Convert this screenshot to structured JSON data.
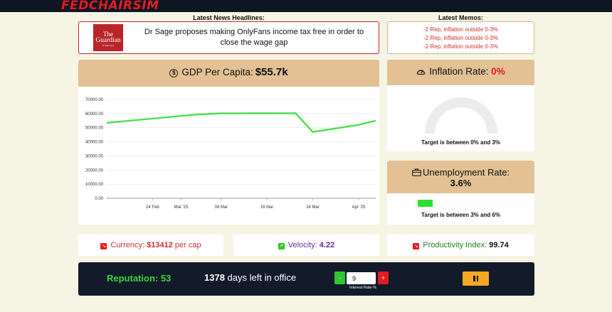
{
  "app": {
    "logo_text": "FEDCHAIRSIM"
  },
  "news": {
    "section_title": "Latest News Headlines:",
    "source_logo": {
      "line1": "The",
      "line2": "Guardian",
      "line3": "of democracy"
    },
    "headline": "Dr Sage proposes making OnlyFans income tax free in order to close the wage gap"
  },
  "memos": {
    "section_title": "Latest Memos:",
    "items": [
      "-2 Rep, inflation outside 0-3%",
      "-2 Rep, inflation outside 0-3%",
      "-2 Rep, inflation outside 0-3%"
    ]
  },
  "gdp": {
    "label": "GDP Per Capita:",
    "value": "$55.7k",
    "icon": "dollar-coin-icon"
  },
  "inflation": {
    "label": "Inflation Rate:",
    "value": "0%",
    "target": "Target is between 0% and 3%",
    "icon": "gauge-icon",
    "gauge_fraction": 0
  },
  "unemployment": {
    "label": "Unemployment Rate:",
    "value": "3.6%",
    "target": "Target is between 3% and 6%",
    "icon": "briefcase-icon",
    "bar_value": 3.6
  },
  "stats": {
    "currency": {
      "label": "Currency:",
      "value": "$13412",
      "suffix": "per cap",
      "icon": "red-badge-icon"
    },
    "velocity": {
      "label": "Velocity:",
      "value": "4.22",
      "icon": "green-badge-icon"
    },
    "productivity": {
      "label": "Productivity Index:",
      "value": "99.74",
      "icon": "red-badge-icon"
    }
  },
  "controls": {
    "reputation_label": "Reputation:",
    "reputation_value": "53",
    "days_value": "1378",
    "days_label": "days left in office",
    "minus_label": "-",
    "plus_label": "+",
    "interest_rate_value": "9",
    "interest_rate_label": "Interest Rate %",
    "pause_icon": "pause-icon"
  },
  "colors": {
    "accent_red": "#e21b22",
    "line_green": "#4be04b",
    "header_tan": "#e3c195",
    "dark_panel": "#131a29"
  },
  "chart_data": {
    "type": "line",
    "yticks": [
      "70000.00",
      "60000.00",
      "50000.00",
      "40000.00",
      "30000.00",
      "20000.00",
      "10000.00",
      "0.00"
    ],
    "xticks": [
      "24 Feb",
      "Mar '25",
      "08 Mar",
      "16 Mar",
      "24 Mar",
      "Apr '25"
    ],
    "ylim": [
      0,
      70000
    ],
    "series": [
      {
        "values": [
          {
            "x": "2025-02-16",
            "y": 53500
          },
          {
            "x": "2025-03-04",
            "y": 59500
          },
          {
            "x": "2025-03-08",
            "y": 60200
          },
          {
            "x": "2025-03-21",
            "y": 60300
          },
          {
            "x": "2025-03-24",
            "y": 47000
          },
          {
            "x": "2025-04-01",
            "y": 52000
          },
          {
            "x": "2025-04-04",
            "y": 55000
          }
        ]
      }
    ],
    "grid": true
  }
}
